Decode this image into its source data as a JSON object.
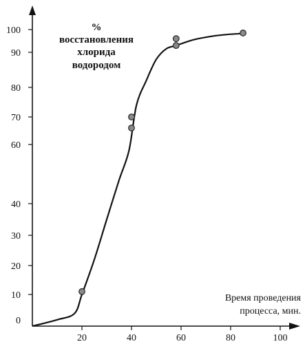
{
  "chart_data": {
    "type": "line",
    "title_lines": [
      "%",
      "восстановления",
      "хлорида",
      "водородом"
    ],
    "xlabel_lines": [
      "Время проведения",
      "процесса, мин."
    ],
    "ylabel": "",
    "x_ticks": [
      20,
      40,
      60,
      80,
      100
    ],
    "y_ticks": [
      0,
      10,
      20,
      30,
      40,
      60,
      70,
      80,
      90,
      100
    ],
    "y_tick_labels": [
      "0",
      "10",
      "20",
      "30",
      "40",
      "60",
      "70",
      "80",
      "90",
      "100"
    ],
    "x_tick_labels": [
      "20",
      "40",
      "60",
      "80",
      "100"
    ],
    "y_axis_gap": [
      40,
      60
    ],
    "series": [
      {
        "curve": [
          {
            "x": 0,
            "y": 0
          },
          {
            "x": 10,
            "y": 2
          },
          {
            "x": 17,
            "y": 4
          },
          {
            "x": 20,
            "y": 10
          },
          {
            "x": 25,
            "y": 22
          },
          {
            "x": 30,
            "y": 35
          },
          {
            "x": 35,
            "y": 48
          },
          {
            "x": 39,
            "y": 58
          },
          {
            "x": 42,
            "y": 74
          },
          {
            "x": 46,
            "y": 82
          },
          {
            "x": 50,
            "y": 88
          },
          {
            "x": 54,
            "y": 91.5
          },
          {
            "x": 58,
            "y": 93
          },
          {
            "x": 65,
            "y": 95.5
          },
          {
            "x": 72,
            "y": 97
          },
          {
            "x": 78,
            "y": 97.8
          },
          {
            "x": 85,
            "y": 98.3
          }
        ],
        "points": [
          {
            "x": 20,
            "y": 11
          },
          {
            "x": 40,
            "y": 70
          },
          {
            "x": 40,
            "y": 66
          },
          {
            "x": 58,
            "y": 96
          },
          {
            "x": 58,
            "y": 93
          },
          {
            "x": 85,
            "y": 98.5
          }
        ]
      }
    ],
    "colors": {
      "line": "#111111",
      "marker_fill": "#8a8a8a",
      "marker_stroke": "#222222"
    }
  }
}
